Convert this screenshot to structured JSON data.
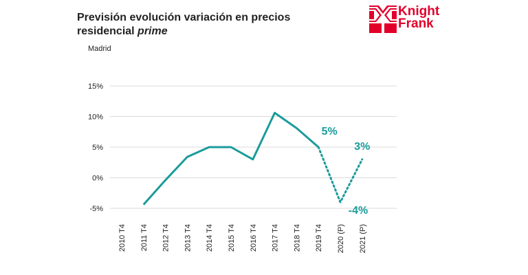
{
  "title_line1": "Previsión evolución  variación en precios",
  "title_line2_prefix": "residencial ",
  "title_line2_italic": "prime",
  "subtitle": "Madrid",
  "logo": {
    "line1": "Knight",
    "line2": "Frank",
    "color": "#e2002b"
  },
  "chart_data": {
    "type": "line",
    "title": "Previsión evolución  variación en precios residencial prime",
    "subtitle": "Madrid",
    "categories": [
      "2010 T4",
      "2011 T4",
      "2012 T4",
      "2013 T4",
      "2014 T4",
      "2015 T4",
      "2016 T4",
      "2017 T4",
      "2018 T4",
      "2019 T4",
      "2020 (P)",
      "2021 (P)"
    ],
    "series": [
      {
        "values": [
          null,
          -4.4,
          -0.4,
          3.4,
          5.0,
          5.0,
          3.0,
          10.6,
          8.1,
          5.0,
          -4.0,
          3.0
        ],
        "style": "solid until 2019 T4, dotted for forecast (P)",
        "color": "#1b9b9b"
      }
    ],
    "y_ticks": [
      "15%",
      "10%",
      "5%",
      "0%",
      "-5%"
    ],
    "ylim": [
      -5,
      15
    ],
    "grid": true,
    "data_labels": [
      {
        "category": "2019 T4",
        "text": "5%"
      },
      {
        "category": "2020 (P)",
        "text": "-4%"
      },
      {
        "category": "2021 (P)",
        "text": "3%"
      }
    ]
  }
}
